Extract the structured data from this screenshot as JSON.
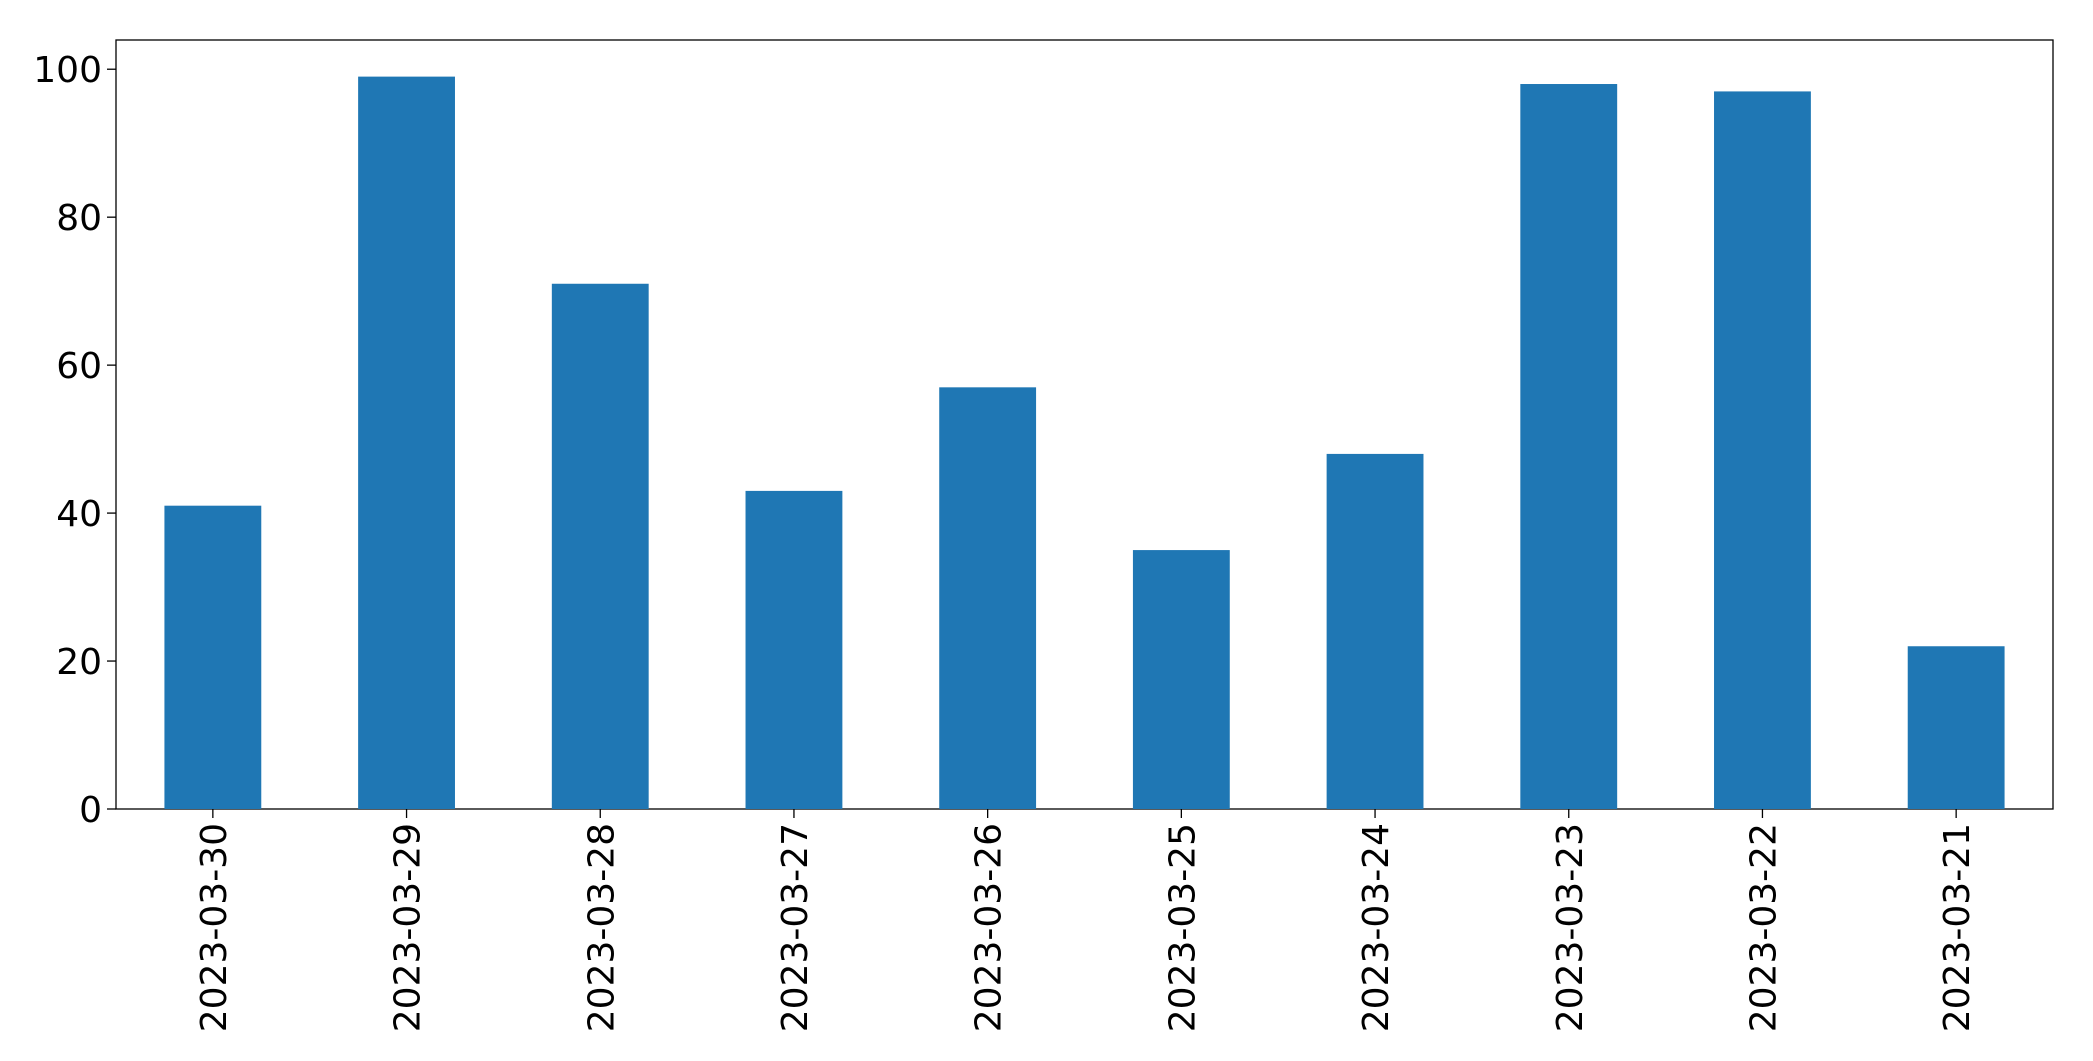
{
  "chart_data": {
    "type": "bar",
    "categories": [
      "2023-03-30",
      "2023-03-29",
      "2023-03-28",
      "2023-03-27",
      "2023-03-26",
      "2023-03-25",
      "2023-03-24",
      "2023-03-23",
      "2023-03-22",
      "2023-03-21"
    ],
    "values": [
      41,
      99,
      71,
      43,
      57,
      35,
      48,
      98,
      97,
      22
    ],
    "color": "#1f77b4",
    "ylim": [
      0,
      103.95
    ],
    "yticks": [
      0,
      20,
      40,
      60,
      80,
      100
    ],
    "grid": false
  }
}
